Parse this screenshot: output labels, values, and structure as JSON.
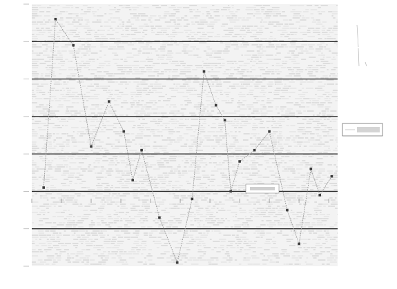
{
  "chart_data": {
    "type": "line",
    "title": "",
    "xlabel": "",
    "ylabel": "",
    "ylim": [
      0,
      7
    ],
    "grid": true,
    "grid_lines_y": [
      1,
      2,
      3,
      4,
      5,
      6
    ],
    "xlim": [
      0,
      10.3
    ],
    "yticks": [
      0,
      1,
      2,
      3,
      4,
      5,
      6,
      7
    ],
    "xticks": [
      0,
      1,
      2,
      3,
      4,
      5,
      6,
      7,
      8,
      9,
      10
    ],
    "legend": "right",
    "series": [
      {
        "x": [
          0.4,
          0.8,
          1.4,
          2.0,
          2.6,
          3.1,
          3.4,
          3.7,
          4.3,
          4.9,
          5.4,
          5.8,
          6.2,
          6.5,
          6.7,
          7.0,
          7.5,
          8.0,
          8.6,
          9.0,
          9.4,
          9.7,
          10.1
        ],
        "values": [
          2.1,
          6.6,
          5.9,
          3.2,
          4.4,
          3.6,
          2.3,
          3.1,
          1.3,
          0.1,
          1.8,
          5.2,
          4.3,
          3.9,
          2.0,
          2.8,
          3.1,
          3.6,
          1.5,
          0.6,
          2.6,
          1.9,
          2.4
        ],
        "color": "#9a9a9a"
      }
    ]
  }
}
